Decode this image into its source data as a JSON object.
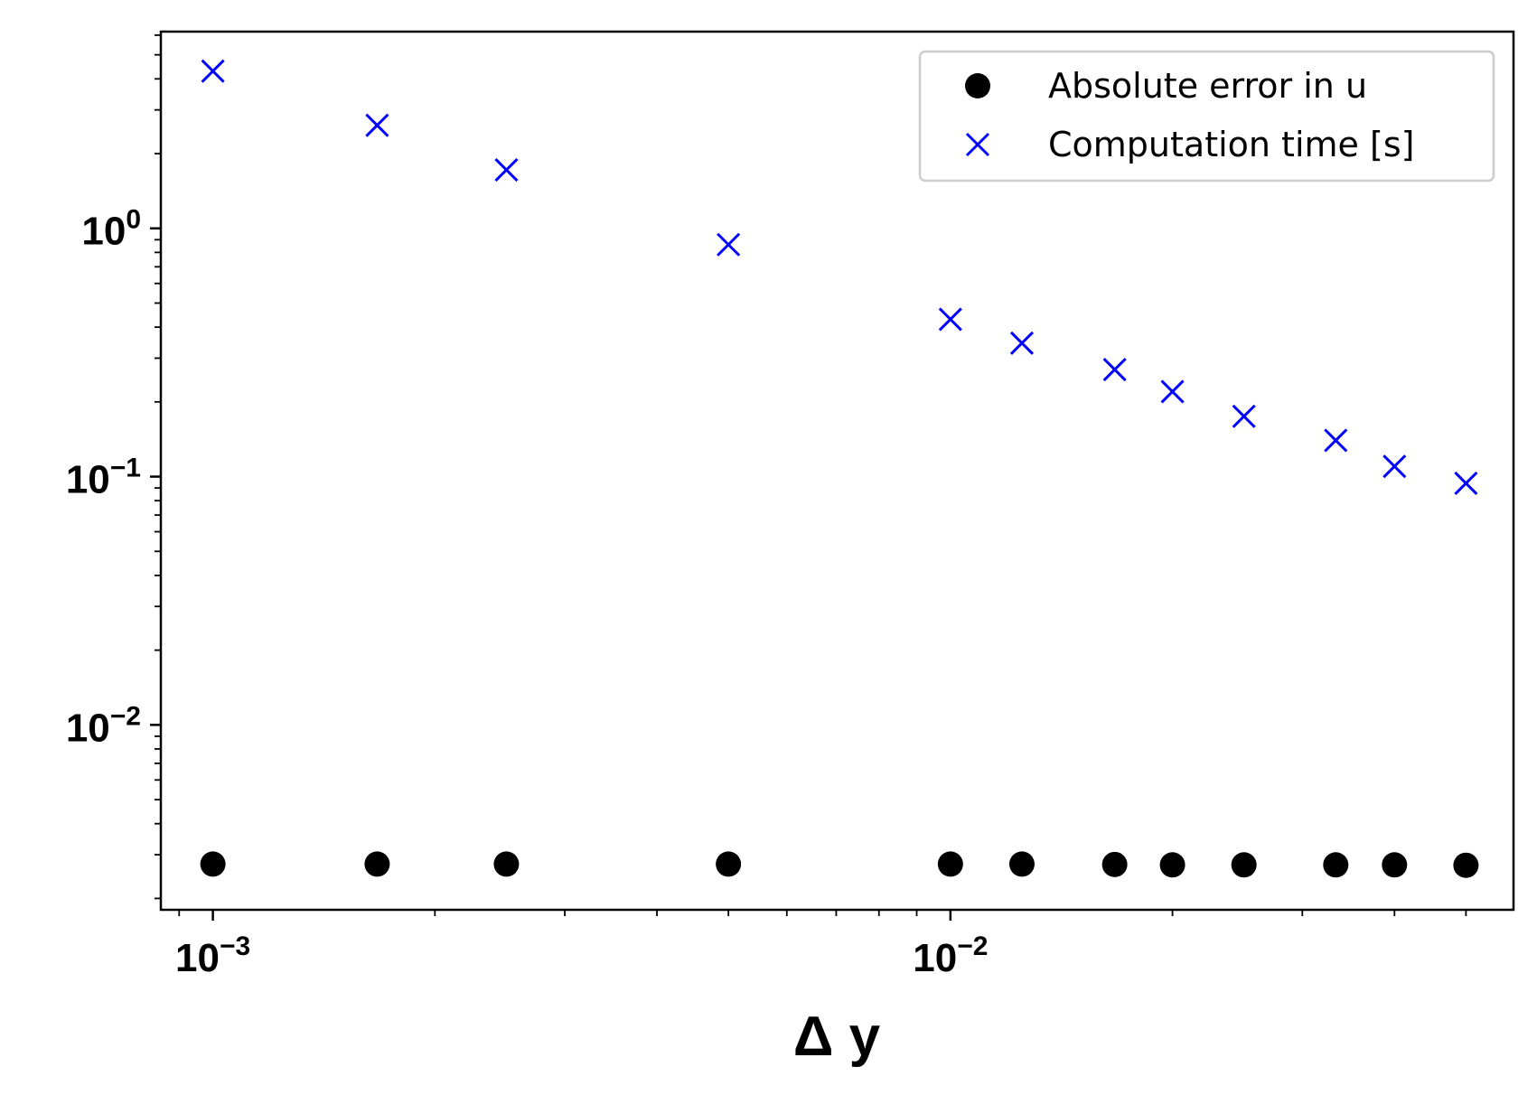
{
  "chart_data": {
    "type": "scatter",
    "xscale": "log",
    "yscale": "log",
    "xlim": [
      0.00085,
      0.058
    ],
    "ylim": [
      0.0018,
      6.2
    ],
    "xlabel": "Δ y",
    "ylabel": "",
    "x_ticks": [
      {
        "value": 0.001,
        "base": "10",
        "exp": "−3"
      },
      {
        "value": 0.01,
        "base": "10",
        "exp": "−2"
      }
    ],
    "y_ticks": [
      {
        "value": 1,
        "base": "10",
        "exp": "0"
      },
      {
        "value": 0.1,
        "base": "10",
        "exp": "−1"
      },
      {
        "value": 0.01,
        "base": "10",
        "exp": "−2"
      }
    ],
    "grid": false,
    "legend_position": "top-right",
    "series": [
      {
        "name": "Absolute error in u",
        "marker": "circle",
        "color": "#000000",
        "x": [
          0.001,
          0.00167,
          0.0025,
          0.005,
          0.01,
          0.0125,
          0.0167,
          0.02,
          0.025,
          0.0333,
          0.04,
          0.05
        ],
        "y": [
          0.00275,
          0.00275,
          0.00275,
          0.00275,
          0.00275,
          0.00275,
          0.00274,
          0.00273,
          0.00273,
          0.00273,
          0.00273,
          0.00272
        ]
      },
      {
        "name": "Computation time [s]",
        "marker": "x",
        "color": "#0000ff",
        "x": [
          0.001,
          0.00167,
          0.0025,
          0.005,
          0.01,
          0.0125,
          0.0167,
          0.02,
          0.025,
          0.0333,
          0.04,
          0.05
        ],
        "y": [
          4.3,
          2.6,
          1.72,
          0.86,
          0.43,
          0.345,
          0.27,
          0.22,
          0.175,
          0.14,
          0.11,
          0.094
        ]
      }
    ]
  }
}
